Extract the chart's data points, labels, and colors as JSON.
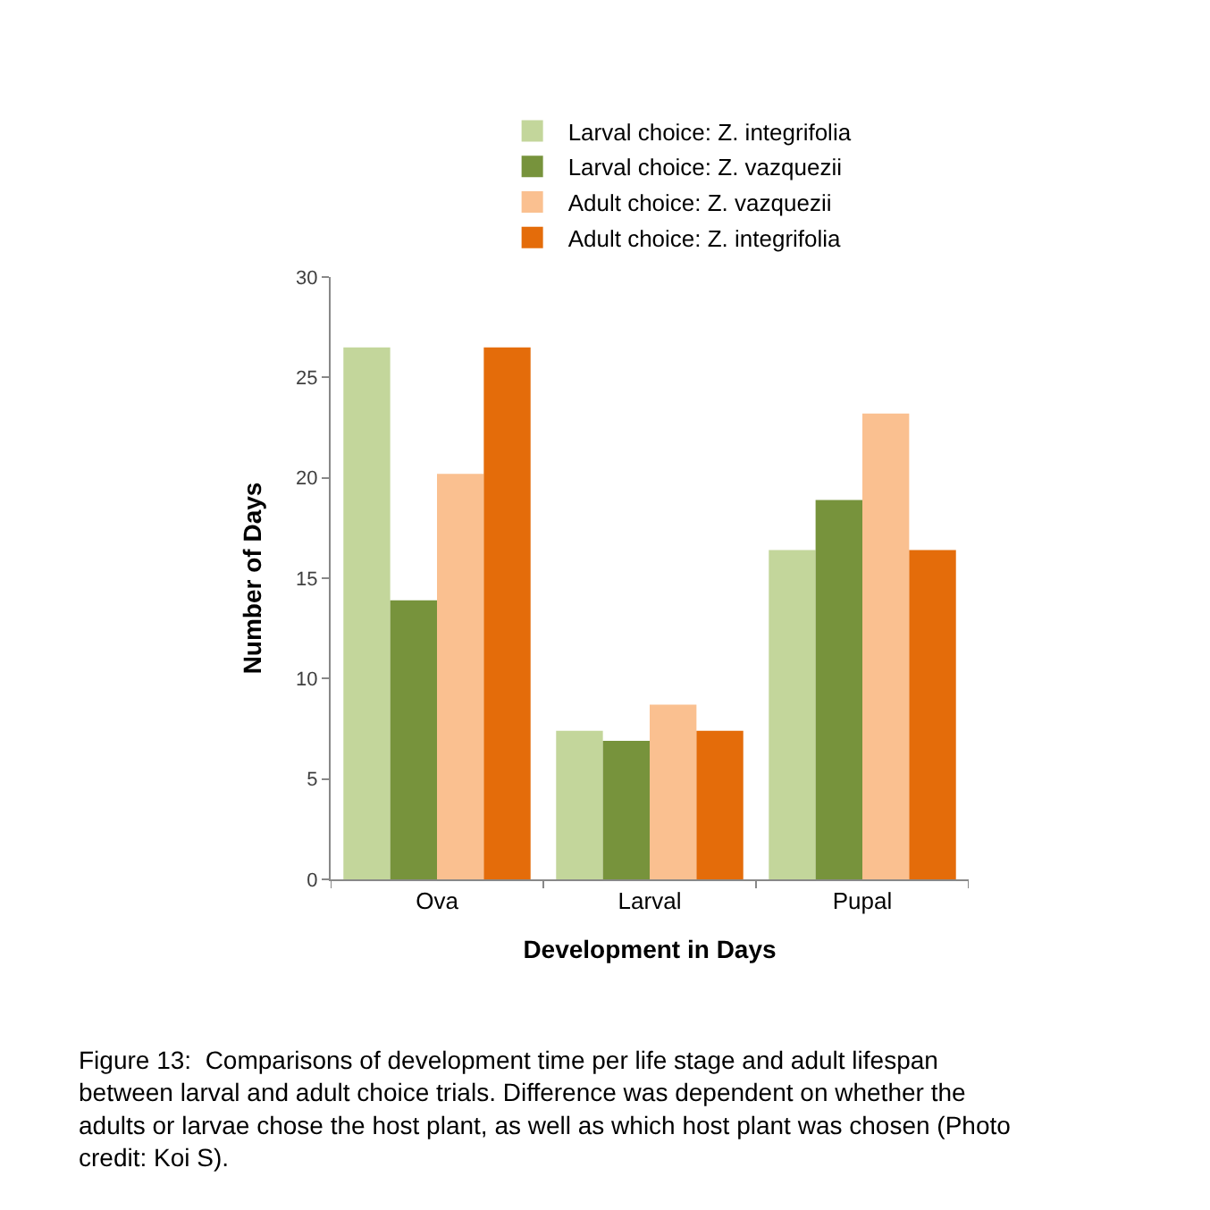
{
  "chart_data": {
    "type": "bar",
    "xlabel": "Development in Days",
    "ylabel": "Number of Days",
    "categories": [
      "Ova",
      "Larval",
      "Pupal"
    ],
    "series": [
      {
        "name": "Larval choice: Z. integrifolia",
        "color": "#c3d69b",
        "values": [
          26.5,
          7.4,
          16.4
        ]
      },
      {
        "name": "Larval choice: Z. vazquezii",
        "color": "#77933c",
        "values": [
          13.9,
          6.9,
          18.9
        ]
      },
      {
        "name": "Adult choice: Z. vazquezii",
        "color": "#fac090",
        "values": [
          20.2,
          8.7,
          23.2
        ]
      },
      {
        "name": "Adult choice: Z. integrifolia",
        "color": "#e46c0a",
        "values": [
          26.5,
          7.4,
          16.4
        ]
      }
    ],
    "ylim": [
      0,
      30
    ],
    "yticks": [
      0,
      5,
      10,
      15,
      20,
      25,
      30
    ],
    "legend": "top",
    "annotations": [
      "Figure 13:  Comparisons of development time per life stage and adult lifespan between larval and adult choice trials. Difference was dependent on whether the adults or larvae chose the host plant, as well as which host plant was chosen (Photo credit: Koi S)."
    ]
  }
}
